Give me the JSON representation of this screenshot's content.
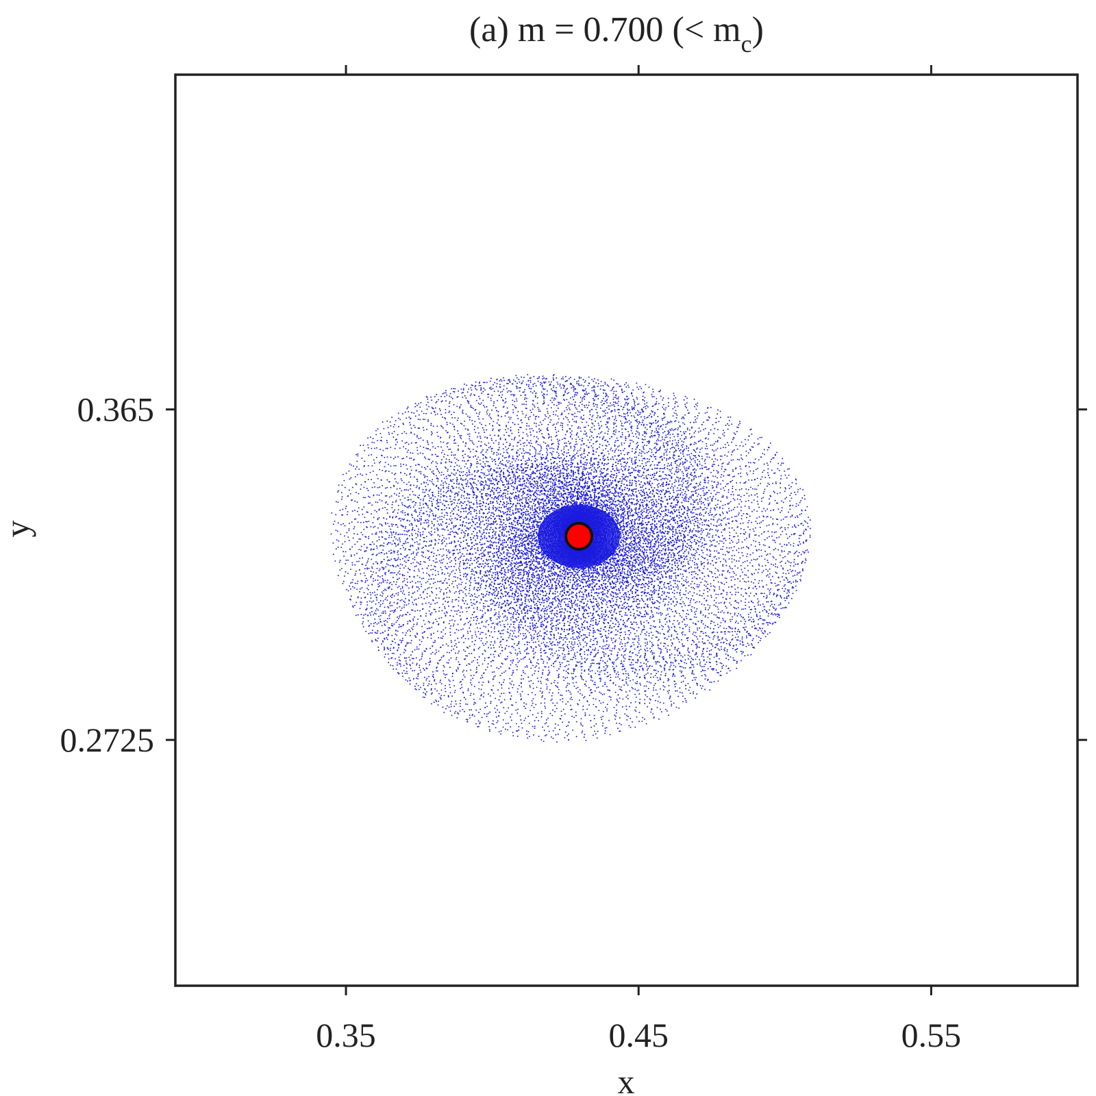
{
  "chart_data": {
    "type": "scatter",
    "title": {
      "prefix": "(a)  m = 0.700  (< m",
      "subscript": "c",
      "suffix": ")"
    },
    "xlabel": "x",
    "ylabel": "y",
    "xlim": [
      0.2917,
      0.6
    ],
    "ylim": [
      0.2037,
      0.4587
    ],
    "x_ticks": [
      {
        "value": 0.35,
        "label": "0.35"
      },
      {
        "value": 0.45,
        "label": "0.45"
      },
      {
        "value": 0.55,
        "label": "0.55"
      }
    ],
    "y_ticks": [
      {
        "value": 0.2725,
        "label": "0.2725"
      },
      {
        "value": 0.365,
        "label": "0.365"
      }
    ],
    "grid": false,
    "legend": "none",
    "series": [
      {
        "kind": "spiral-cloud",
        "color": "#1a1adf",
        "center": {
          "x": 0.4296,
          "y": 0.3295
        },
        "outer_extent": {
          "x": [
            0.356,
            0.518
          ],
          "y": [
            0.283,
            0.385
          ]
        },
        "dense_core_extent": {
          "x": [
            0.407,
            0.457
          ],
          "y": [
            0.31,
            0.351
          ]
        }
      },
      {
        "kind": "fixed-point",
        "fill": "#ff0000",
        "stroke": "#111111",
        "x": 0.4296,
        "y": 0.3295
      }
    ]
  }
}
